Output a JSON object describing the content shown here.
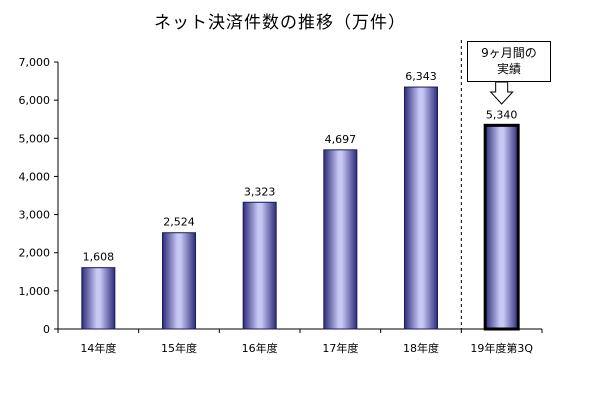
{
  "chart_data": {
    "type": "bar",
    "title": "ネット決済件数の推移（万件）",
    "categories": [
      "14年度",
      "15年度",
      "16年度",
      "17年度",
      "18年度",
      "19年度第3Q"
    ],
    "values": [
      1608,
      2524,
      3323,
      4697,
      6343,
      5340
    ],
    "value_labels": [
      "1,608",
      "2,524",
      "3,323",
      "4,697",
      "6,343",
      "5,340"
    ],
    "ylim": [
      0,
      7000
    ],
    "yticks": [
      0,
      1000,
      2000,
      3000,
      4000,
      5000,
      6000,
      7000
    ],
    "ytick_labels": [
      "0",
      "1,000",
      "2,000",
      "3,000",
      "4,000",
      "5,000",
      "6,000",
      "7,000"
    ],
    "xlabel": "",
    "ylabel": "",
    "grid": false,
    "highlighted_category": "19年度第3Q",
    "annotation": {
      "lines": [
        "9ヶ月間の",
        "実績"
      ],
      "target_category": "19年度第3Q"
    },
    "colors": {
      "bar_edge": "#1a1a5e",
      "bar_center": "#c8c8f5",
      "bar_dark": "#3a3a8c"
    }
  }
}
